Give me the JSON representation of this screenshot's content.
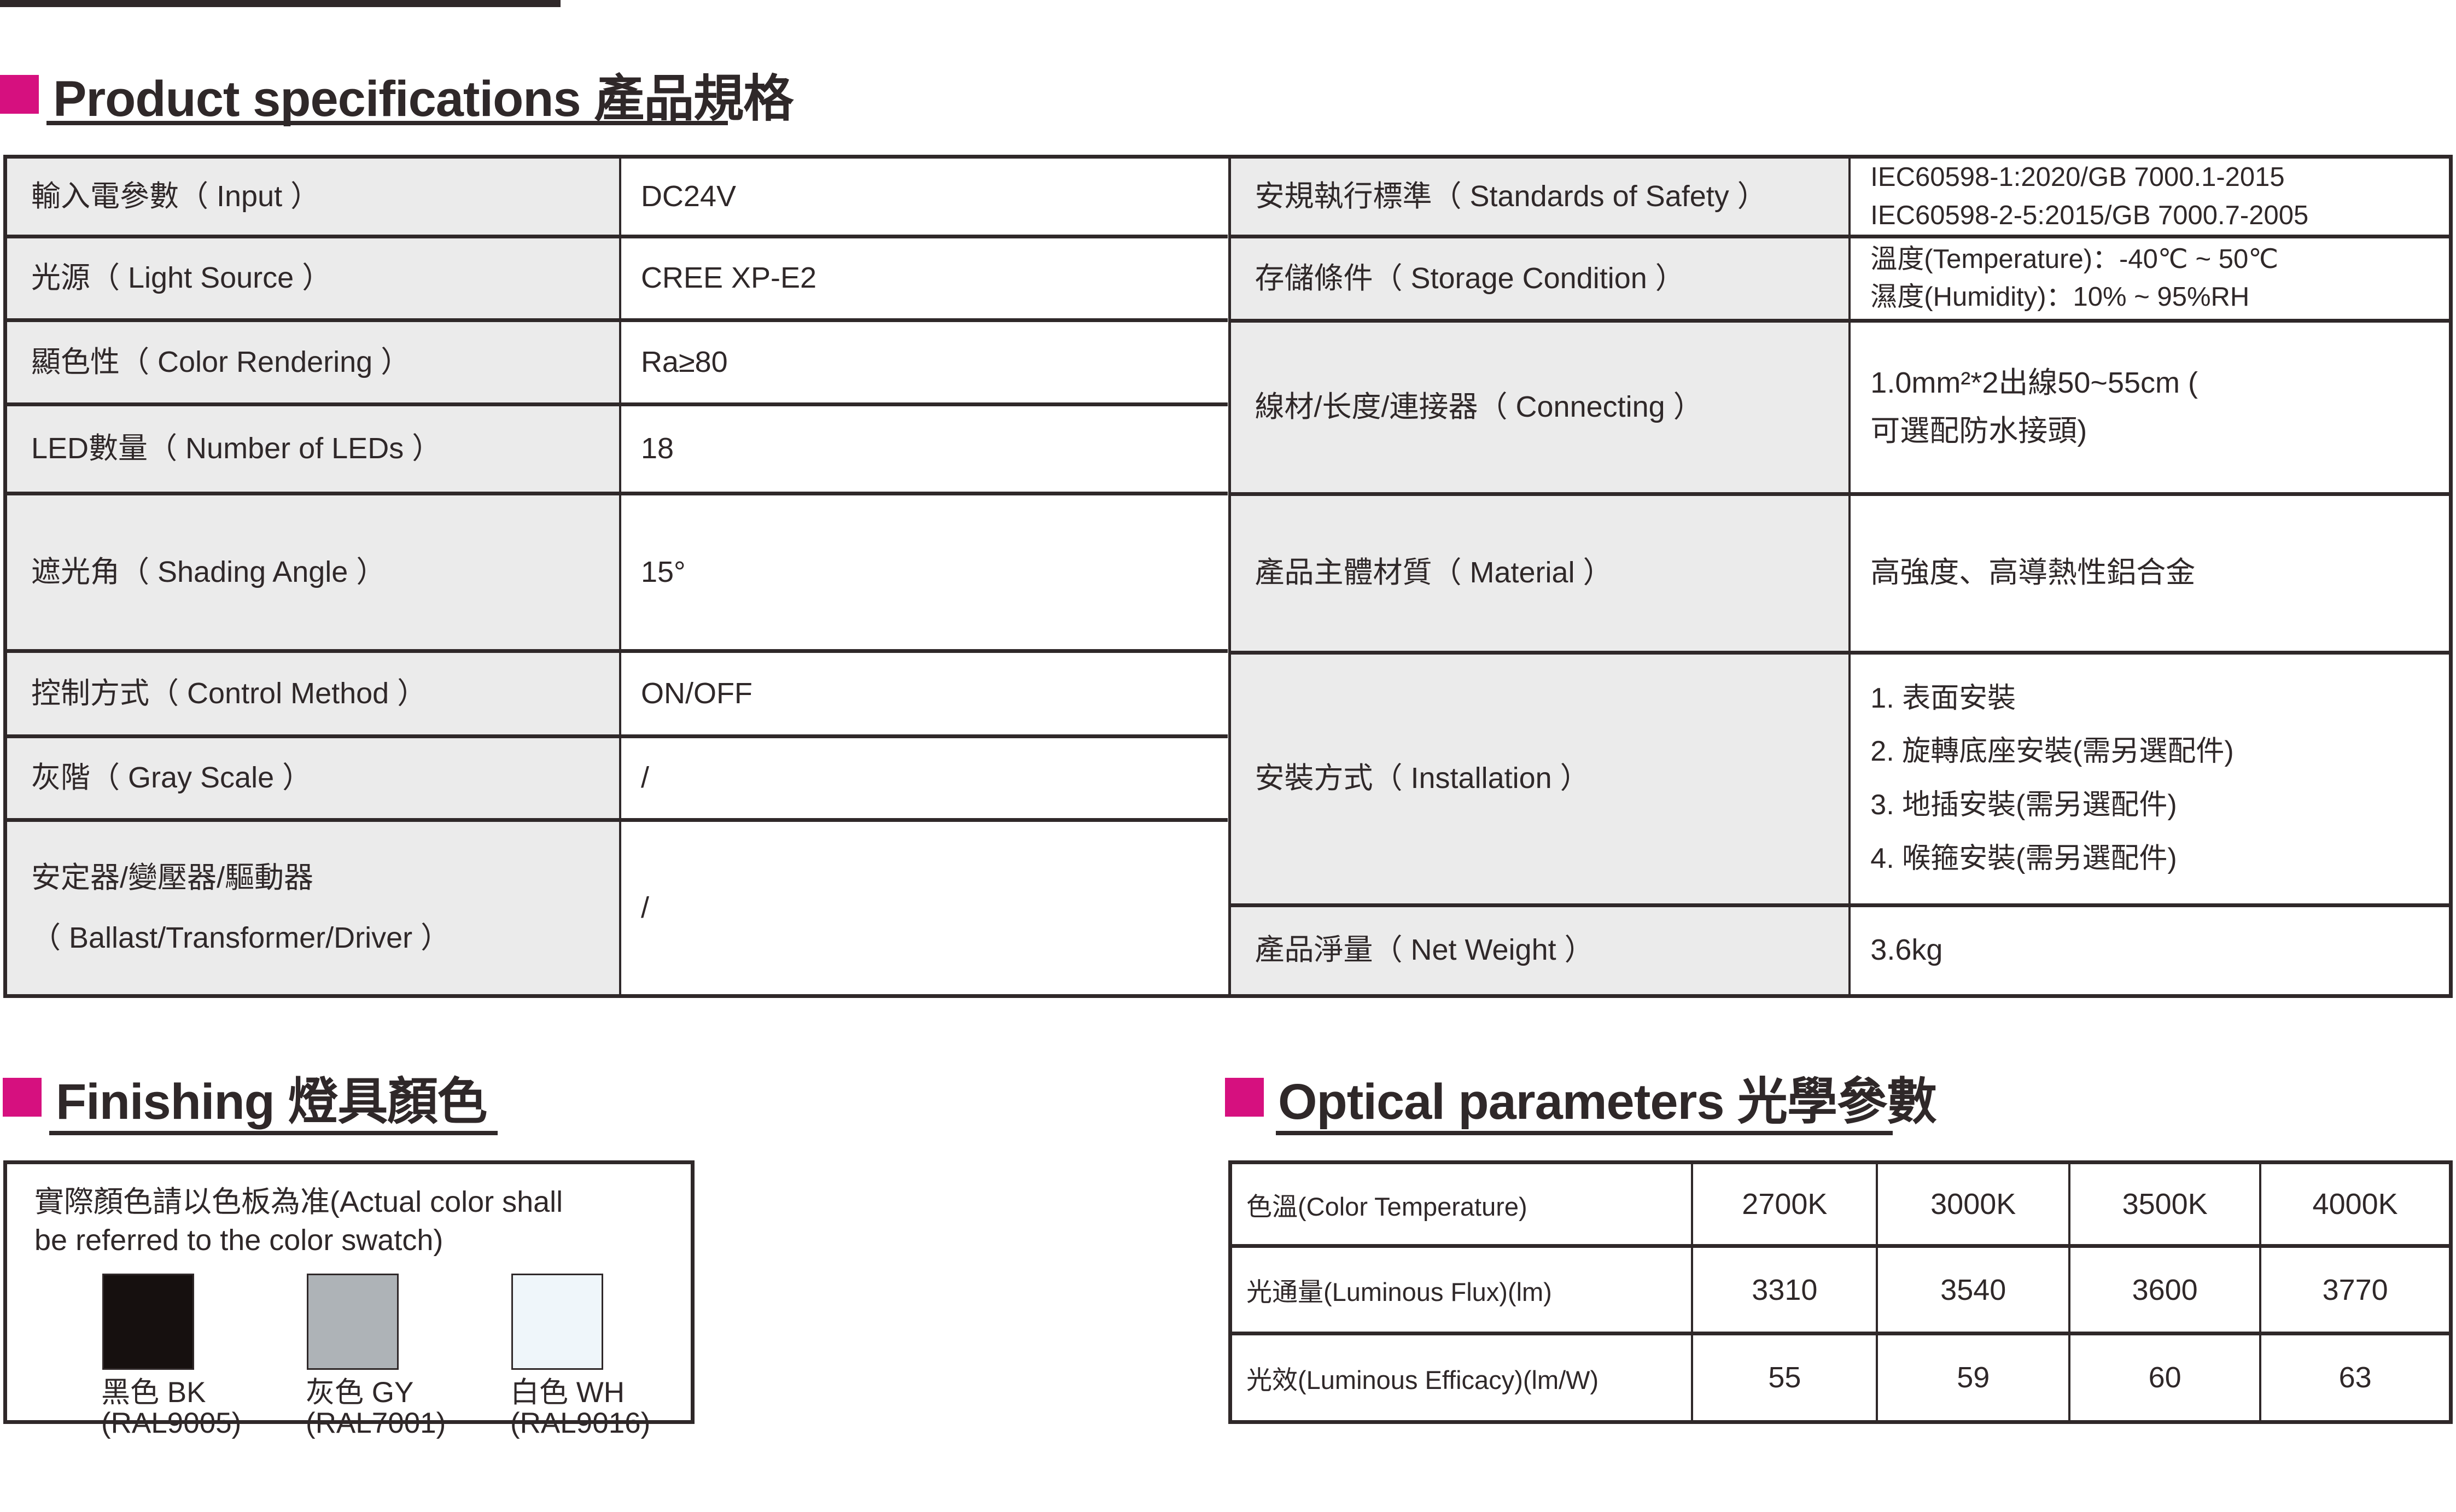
{
  "theme": {
    "ink_color": "#2f2829",
    "accent_color": "#d6107f",
    "label_cell_bg": "#ebebeb"
  },
  "sections": {
    "product": {
      "title": "Product specifications 產品規格"
    },
    "finishing": {
      "title": "Finishing 燈具顏色"
    },
    "optical": {
      "title": "Optical parameters 光學參數"
    }
  },
  "spec": {
    "left_rows": [
      {
        "label": "輸入電參數（ Input ）",
        "value": "DC24V"
      },
      {
        "label": "光源（ Light Source ）",
        "value": "CREE XP-E2"
      },
      {
        "label": "顯色性（ Color Rendering ）",
        "value": "Ra≥80"
      },
      {
        "label": "LED數量（ Number of LEDs ）",
        "value": "18"
      },
      {
        "label": "遮光角（ Shading Angle ）",
        "value": "15°"
      },
      {
        "label": "控制方式（ Control Method ）",
        "value": "ON/OFF"
      },
      {
        "label": "灰階（ Gray Scale ）",
        "value": "/"
      },
      {
        "label": "安定器/變壓器/驅動器\n（ Ballast/Transformer/Driver ）",
        "value": "/"
      }
    ],
    "right_rows": [
      {
        "label": "安規執行標準（ Standards of Safety ）",
        "value": "IEC60598-1:2020/GB 7000.1-2015\nIEC60598-2-5:2015/GB 7000.7-2005"
      },
      {
        "label": "存儲條件（ Storage Condition ）",
        "value": "溫度(Temperature)：-40℃ ~ 50℃\n濕度(Humidity)：10% ~ 95%RH"
      },
      {
        "label": "線材/长度/連接器（ Connecting ）",
        "value": "1.0mm²*2出線50~55cm (\n可選配防水接頭)"
      },
      {
        "label": "產品主體材質（ Material ）",
        "value": "高強度、高導熱性鋁合金"
      },
      {
        "label": "安裝方式（ Installation ）",
        "value": "1. 表面安裝\n2. 旋轉底座安裝(需另選配件)\n3. 地插安裝(需另選配件)\n4. 喉箍安裝(需另選配件)"
      },
      {
        "label": "產品淨量（ Net Weight ）",
        "value": "3.6kg"
      }
    ]
  },
  "finishing": {
    "note": "實際顏色請以色板為准(Actual color shall\nbe referred to the color swatch)",
    "swatches": [
      {
        "name": "黑色 BK",
        "ral": "(RAL9005)",
        "color": "#16100f"
      },
      {
        "name": "灰色 GY",
        "ral": "(RAL7001)",
        "color": "#aeb3b7"
      },
      {
        "name": "白色 WH",
        "ral": "(RAL9016)",
        "color": "#eff6fa"
      }
    ]
  },
  "optical": {
    "header_label": "色溫(Color Temperature)",
    "header_cols": [
      "2700K",
      "3000K",
      "3500K",
      "4000K"
    ],
    "rows": [
      {
        "label": "光通量(Luminous Flux)(lm)",
        "values": [
          "3310",
          "3540",
          "3600",
          "3770"
        ]
      },
      {
        "label": "光效(Luminous Efficacy)(lm/W)",
        "values": [
          "55",
          "59",
          "60",
          "63"
        ]
      }
    ]
  }
}
